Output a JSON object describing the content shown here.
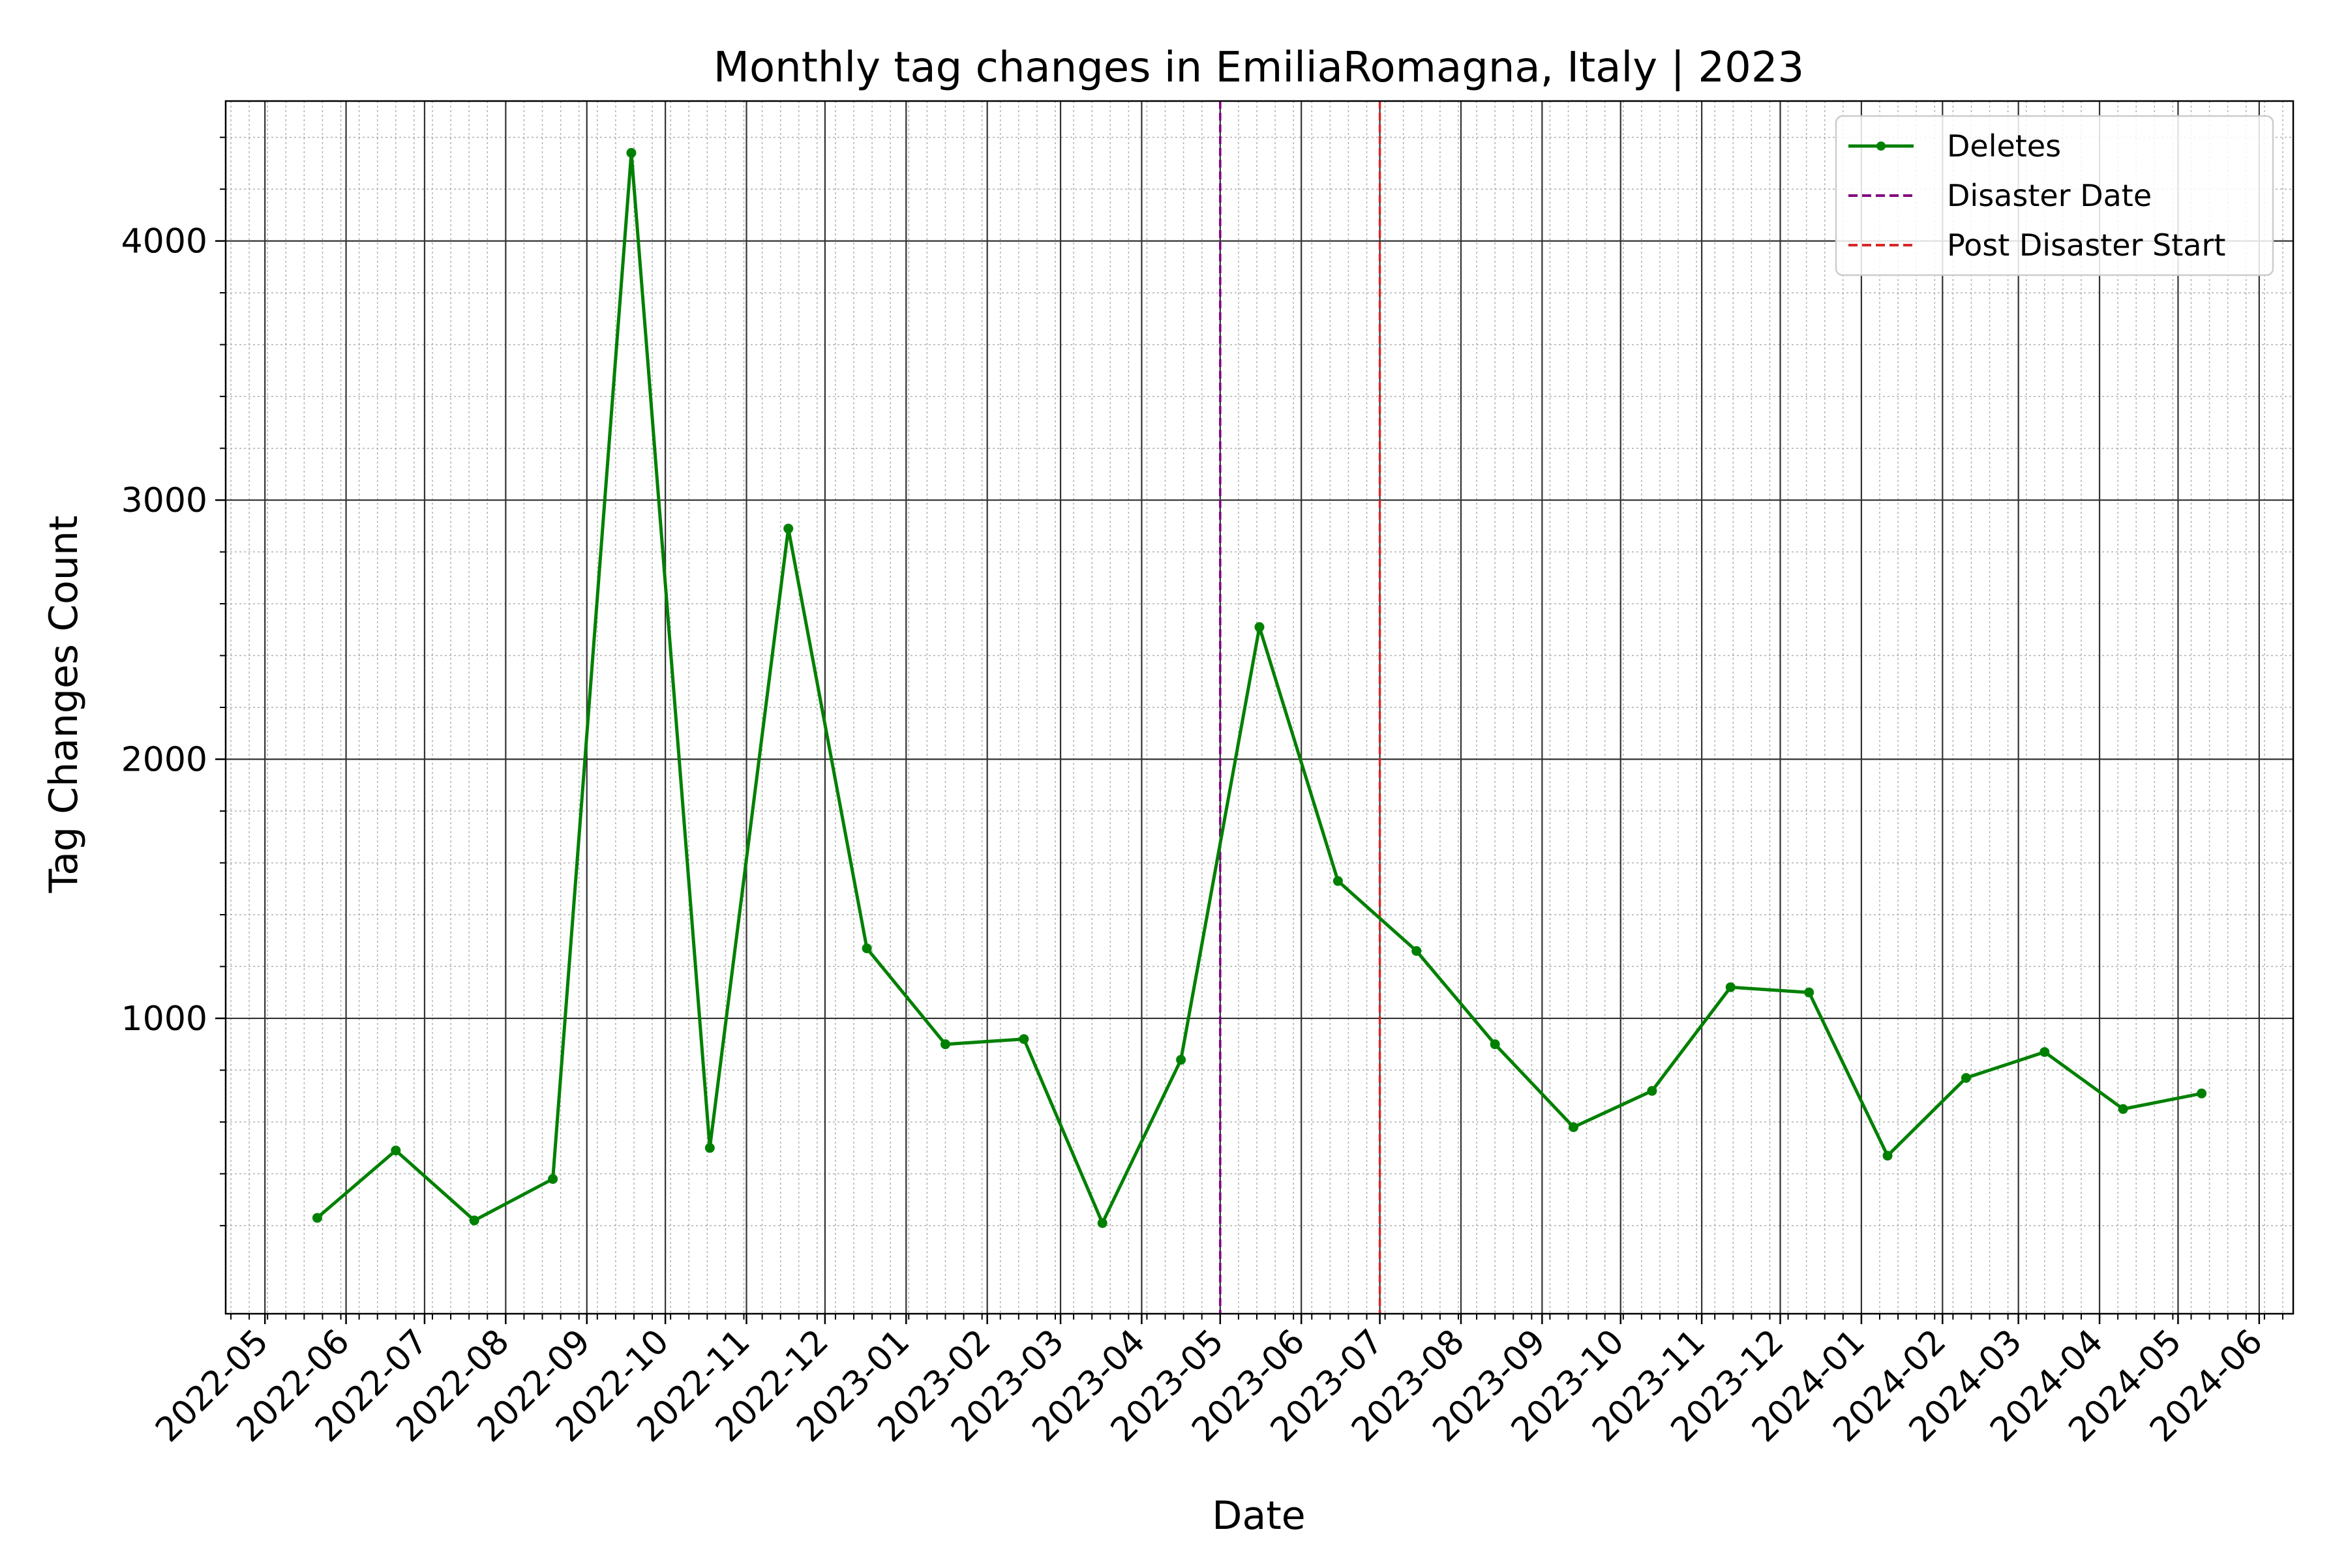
{
  "chart_data": {
    "type": "line",
    "title": "Monthly tag changes in EmiliaRomagna, Italy | 2023",
    "xlabel": "Date",
    "ylabel": "Tag Changes Count",
    "x_tick_labels": [
      "2022-05",
      "2022-06",
      "2022-07",
      "2022-08",
      "2022-09",
      "2022-10",
      "2022-11",
      "2022-12",
      "2023-01",
      "2023-02",
      "2023-03",
      "2023-04",
      "2023-05",
      "2023-06",
      "2023-07",
      "2023-08",
      "2023-09",
      "2023-10",
      "2023-11",
      "2023-12",
      "2024-01",
      "2024-02",
      "2024-03",
      "2024-04",
      "2024-05",
      "2024-06"
    ],
    "y_ticks": [
      1000,
      2000,
      3000,
      4000
    ],
    "xlim": [
      "2022-04-16",
      "2024-06-14"
    ],
    "ylim": [
      -140,
      4540
    ],
    "grid": "major and minor",
    "legend_position": "top-right",
    "series": [
      {
        "name": "Deletes",
        "color": "#008000",
        "marker": "circle",
        "x": [
          "2022-05-21",
          "2022-06-20",
          "2022-07-20",
          "2022-08-19",
          "2022-09-18",
          "2022-10-18",
          "2022-11-17",
          "2022-12-17",
          "2023-01-16",
          "2023-02-15",
          "2023-03-17",
          "2023-04-16",
          "2023-05-16",
          "2023-06-15",
          "2023-07-15",
          "2023-08-14",
          "2023-09-13",
          "2023-10-13",
          "2023-11-12",
          "2023-12-12",
          "2024-01-11",
          "2024-02-10",
          "2024-03-11",
          "2024-04-10",
          "2024-05-10"
        ],
        "values": [
          230,
          490,
          220,
          380,
          4340,
          500,
          2890,
          1270,
          900,
          920,
          210,
          840,
          2510,
          1530,
          1260,
          900,
          580,
          720,
          1120,
          1100,
          470,
          770,
          870,
          650,
          710
        ]
      }
    ],
    "vlines": [
      {
        "name": "Disaster Date",
        "x": "2023-05-01",
        "color": "#800080",
        "style": "dashed"
      },
      {
        "name": "Post Disaster Start",
        "x": "2023-07-01",
        "color": "#d62728",
        "style": "dashed"
      }
    ]
  }
}
